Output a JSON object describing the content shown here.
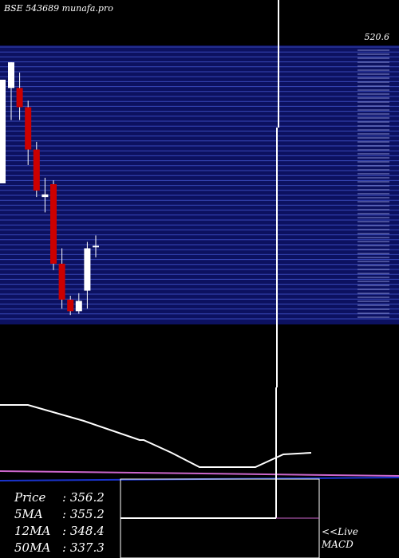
{
  "header": {
    "title": "BSE 543689 munafa.pro",
    "price_top_label": "520.6"
  },
  "chart_data": {
    "type": "candlestick",
    "price_range": [
      300,
      520.6
    ],
    "candles": [
      {
        "o": 480,
        "h": 500,
        "l": 455,
        "c": 500,
        "color": "white"
      },
      {
        "o": 480,
        "h": 492,
        "l": 455,
        "c": 465,
        "color": "red"
      },
      {
        "o": 465,
        "h": 470,
        "l": 420,
        "c": 432,
        "color": "red"
      },
      {
        "o": 432,
        "h": 438,
        "l": 395,
        "c": 400,
        "color": "red"
      },
      {
        "o": 397,
        "h": 410,
        "l": 383,
        "c": 395,
        "color": "white"
      },
      {
        "o": 405,
        "h": 408,
        "l": 338,
        "c": 343,
        "color": "red"
      },
      {
        "o": 343,
        "h": 355,
        "l": 308,
        "c": 315,
        "color": "red"
      },
      {
        "o": 315,
        "h": 318,
        "l": 303,
        "c": 306,
        "color": "red"
      },
      {
        "o": 306,
        "h": 320,
        "l": 304,
        "c": 314,
        "color": "white"
      },
      {
        "o": 322,
        "h": 360,
        "l": 308,
        "c": 355,
        "color": "white"
      },
      {
        "o": 356,
        "h": 365,
        "l": 348,
        "c": 357,
        "color": "white"
      }
    ],
    "indicator_line": [
      92,
      92,
      82,
      72,
      60,
      48,
      48,
      32,
      14,
      14,
      14,
      30,
      32
    ],
    "level_line": 3
  },
  "info": {
    "price_label": "Price",
    "price_value": ": 356.2",
    "ma5_label": "5MA",
    "ma5_value": ": 355.2",
    "ma12_label": "12MA",
    "ma12_value": ": 348.4",
    "ma50_label": "50MA",
    "ma50_value": ": 337.3"
  },
  "footer": {
    "live_label": "<<Live",
    "macd_label": "MACD"
  },
  "colors": {
    "band": "#0c1160",
    "band_line": "#3848b8",
    "red": "#cc0000",
    "magenta": "#cc66cc",
    "blue": "#1a33cc",
    "white": "#ffffff"
  }
}
